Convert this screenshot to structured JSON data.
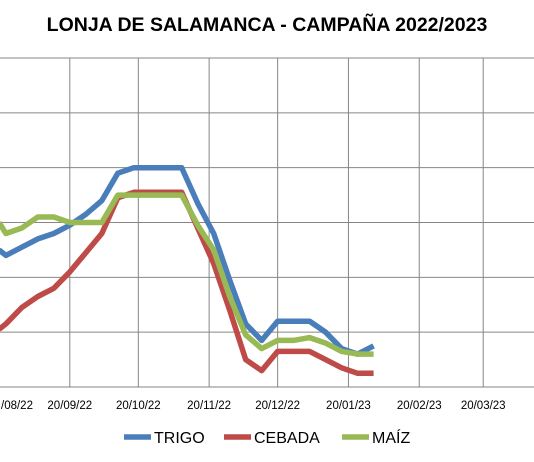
{
  "chart_data": {
    "type": "line",
    "title": "LONJA DE SALAMANCA - CAMPAÑA 2022/2023",
    "xlabel": "",
    "ylabel": "",
    "x_axis": {
      "type": "date",
      "range": [
        "2022-08-20",
        "2023-04-20"
      ],
      "tick_values": [
        "2022-08-20",
        "2022-09-20",
        "2022-10-20",
        "2022-11-20",
        "2022-12-20",
        "2023-01-20",
        "2023-02-20",
        "2023-03-20",
        "2023-04-20"
      ],
      "tick_labels": [
        "/08/22",
        "20/09/22",
        "20/10/22",
        "20/11/22",
        "20/12/22",
        "20/01/23",
        "20/02/23",
        "20/03/23",
        ""
      ]
    },
    "y_axis": {
      "tick_labels_visible": false,
      "gridlines": 7
    },
    "grid": true,
    "legend_position": "bottom",
    "x": [
      "2022-08-20",
      "2022-08-23",
      "2022-08-30",
      "2022-09-06",
      "2022-09-13",
      "2022-09-20",
      "2022-09-27",
      "2022-10-04",
      "2022-10-11",
      "2022-10-18",
      "2022-10-25",
      "2022-11-01",
      "2022-11-08",
      "2022-11-15",
      "2022-11-22",
      "2022-11-29",
      "2022-12-06",
      "2022-12-13",
      "2022-12-20",
      "2022-12-27",
      "2023-01-03",
      "2023-01-10",
      "2023-01-17",
      "2023-01-24",
      "2023-01-31",
      "2023-02-07",
      "2023-02-14"
    ],
    "series": [
      {
        "name": "TRIGO",
        "color": "#4a7ebb",
        "values": [
          5.0,
          4.8,
          5.1,
          5.4,
          5.6,
          5.9,
          6.3,
          6.8,
          7.8,
          8.0,
          8.0,
          8.0,
          8.0,
          6.7,
          5.6,
          3.9,
          2.3,
          1.7,
          2.4,
          2.4,
          2.4,
          2.0,
          1.4,
          1.2,
          1.5,
          null,
          null
        ]
      },
      {
        "name": "CEBADA",
        "color": "#be4b48",
        "values": [
          2.1,
          2.3,
          2.9,
          3.3,
          3.6,
          4.2,
          4.9,
          5.6,
          6.9,
          7.1,
          7.1,
          7.1,
          7.1,
          5.8,
          4.5,
          2.8,
          1.0,
          0.6,
          1.3,
          1.3,
          1.3,
          1.0,
          0.7,
          0.5,
          0.5,
          null,
          null
        ]
      },
      {
        "name": "MAÍZ",
        "color": "#98b954",
        "values": [
          6.0,
          5.6,
          5.8,
          6.2,
          6.2,
          6.0,
          6.0,
          6.0,
          7.0,
          7.0,
          7.0,
          7.0,
          7.0,
          5.9,
          5.0,
          3.3,
          1.9,
          1.4,
          1.7,
          1.7,
          1.8,
          1.6,
          1.3,
          1.2,
          1.2,
          null,
          null
        ]
      }
    ]
  }
}
